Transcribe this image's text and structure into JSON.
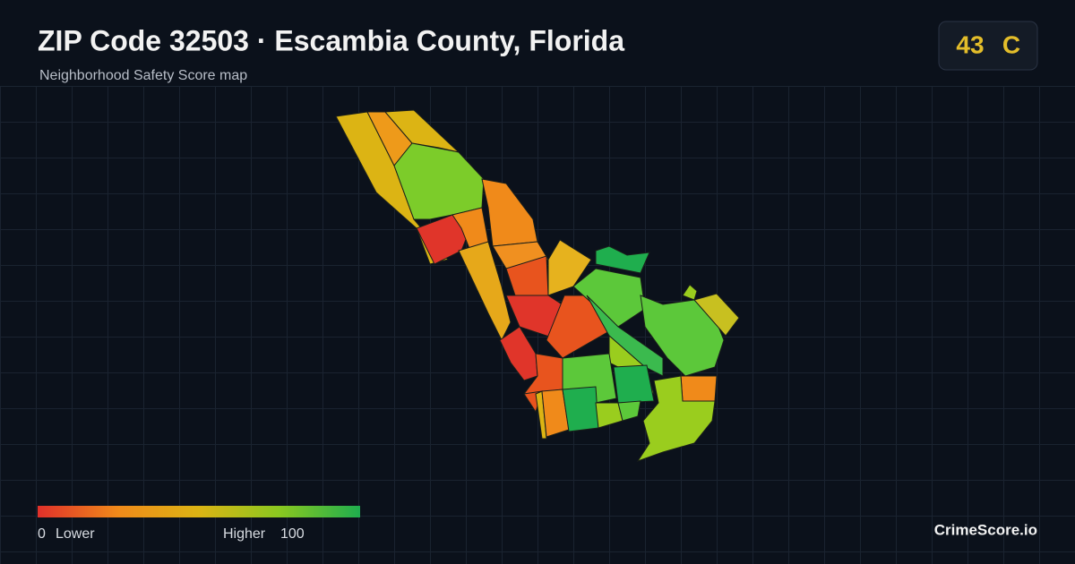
{
  "header": {
    "title": "ZIP Code 32503 · Escambia County, Florida",
    "subtitle": "Neighborhood Safety Score map"
  },
  "score": {
    "value": 43,
    "grade": "C"
  },
  "legend": {
    "min": 0,
    "min_label": "Lower",
    "max_label": "Higher",
    "max": 100
  },
  "brand": "CrimeScore.io"
}
